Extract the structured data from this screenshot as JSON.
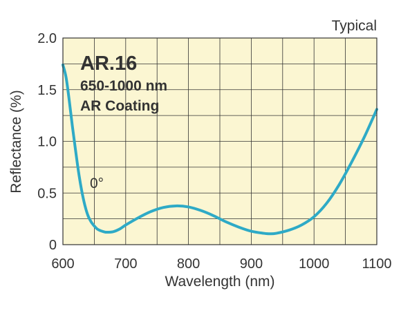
{
  "chart_data": {
    "type": "line",
    "corner_note": "Typical",
    "xlabel": "Wavelength (nm)",
    "ylabel": "Reflectance (%)",
    "xlim": [
      600,
      1100
    ],
    "ylim": [
      0,
      2.0
    ],
    "x_ticks": [
      {
        "value": 600,
        "label": "600"
      },
      {
        "value": 700,
        "label": "700"
      },
      {
        "value": 800,
        "label": "800"
      },
      {
        "value": 900,
        "label": "900"
      },
      {
        "value": 1000,
        "label": "1000"
      },
      {
        "value": 1100,
        "label": "1100"
      }
    ],
    "y_ticks": [
      {
        "value": 0,
        "label": "0"
      },
      {
        "value": 0.5,
        "label": "0.5"
      },
      {
        "value": 1.0,
        "label": "1.0"
      },
      {
        "value": 1.5,
        "label": "1.5"
      },
      {
        "value": 2.0,
        "label": "2.0"
      }
    ],
    "grid": true,
    "annotation": {
      "title": "AR.16",
      "lines": [
        "650-1000 nm",
        "AR Coating"
      ]
    },
    "series": [
      {
        "label": "0°",
        "color": "#2eaac6",
        "points": [
          [
            600,
            1.74
          ],
          [
            605,
            1.62
          ],
          [
            610,
            1.4
          ],
          [
            615,
            1.15
          ],
          [
            620,
            0.92
          ],
          [
            625,
            0.7
          ],
          [
            630,
            0.52
          ],
          [
            635,
            0.38
          ],
          [
            640,
            0.28
          ],
          [
            645,
            0.22
          ],
          [
            650,
            0.18
          ],
          [
            655,
            0.15
          ],
          [
            660,
            0.135
          ],
          [
            665,
            0.125
          ],
          [
            670,
            0.12
          ],
          [
            680,
            0.125
          ],
          [
            690,
            0.15
          ],
          [
            700,
            0.19
          ],
          [
            720,
            0.26
          ],
          [
            740,
            0.32
          ],
          [
            760,
            0.36
          ],
          [
            780,
            0.375
          ],
          [
            800,
            0.365
          ],
          [
            820,
            0.33
          ],
          [
            840,
            0.28
          ],
          [
            860,
            0.22
          ],
          [
            880,
            0.17
          ],
          [
            900,
            0.13
          ],
          [
            920,
            0.11
          ],
          [
            930,
            0.105
          ],
          [
            940,
            0.11
          ],
          [
            960,
            0.14
          ],
          [
            980,
            0.19
          ],
          [
            1000,
            0.27
          ],
          [
            1020,
            0.4
          ],
          [
            1040,
            0.58
          ],
          [
            1060,
            0.8
          ],
          [
            1080,
            1.04
          ],
          [
            1100,
            1.31
          ]
        ]
      }
    ],
    "colors": {
      "plot_background": "#fbf6d2",
      "grid": "#333333",
      "text": "#333333"
    }
  }
}
